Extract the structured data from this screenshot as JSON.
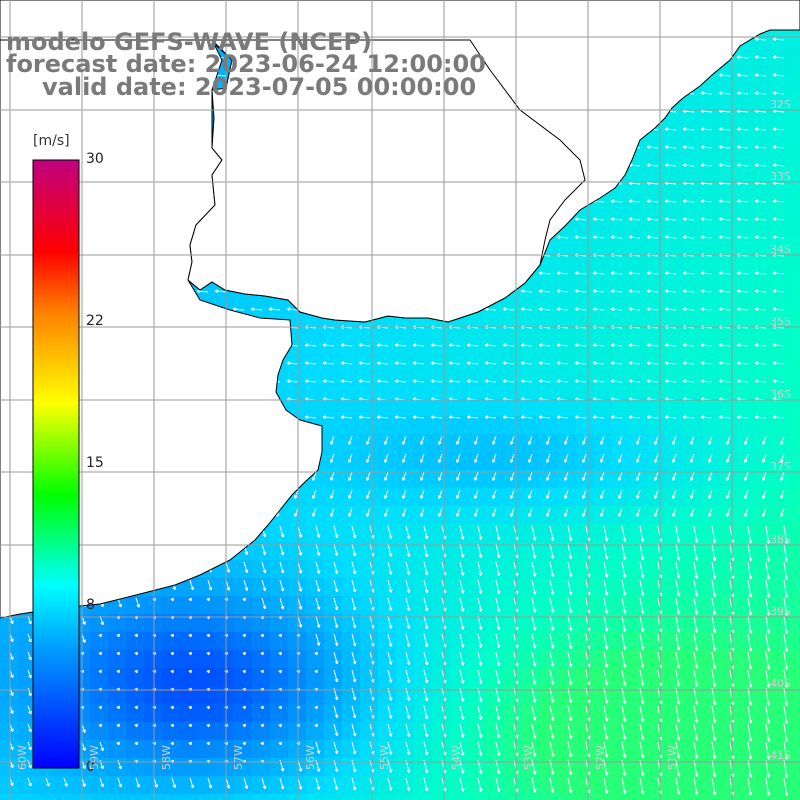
{
  "title": {
    "model": "modelo GEFS-WAVE (NCEP)",
    "forecast": "forecast date: 2023-06-24 12:00:00",
    "valid": "valid date: 2023-07-05 00:00:00"
  },
  "colorbar": {
    "unit": "[m/s]",
    "ticks": [
      {
        "label": "30",
        "value": 30
      },
      {
        "label": "22",
        "value": 22
      },
      {
        "label": "15",
        "value": 15
      },
      {
        "label": "8",
        "value": 8
      },
      {
        "label": "0",
        "value": 0
      }
    ],
    "colors": [
      "#0000ff",
      "#00a0ff",
      "#00ffff",
      "#00ff00",
      "#ffff00",
      "#ff8000",
      "#ff0000",
      "#c00080"
    ]
  },
  "map": {
    "lat_labels": [
      "32S",
      "33S",
      "34S",
      "35S",
      "36S",
      "37S",
      "38S",
      "39S",
      "40S",
      "41S"
    ],
    "lon_labels": [
      "60W",
      "59W",
      "58W",
      "57W",
      "56W",
      "55W",
      "54W",
      "53W",
      "52W",
      "51W"
    ],
    "land_color": "#ffffff",
    "grid_color": "#9a9a9a",
    "arrow_color": "#ffffff"
  }
}
